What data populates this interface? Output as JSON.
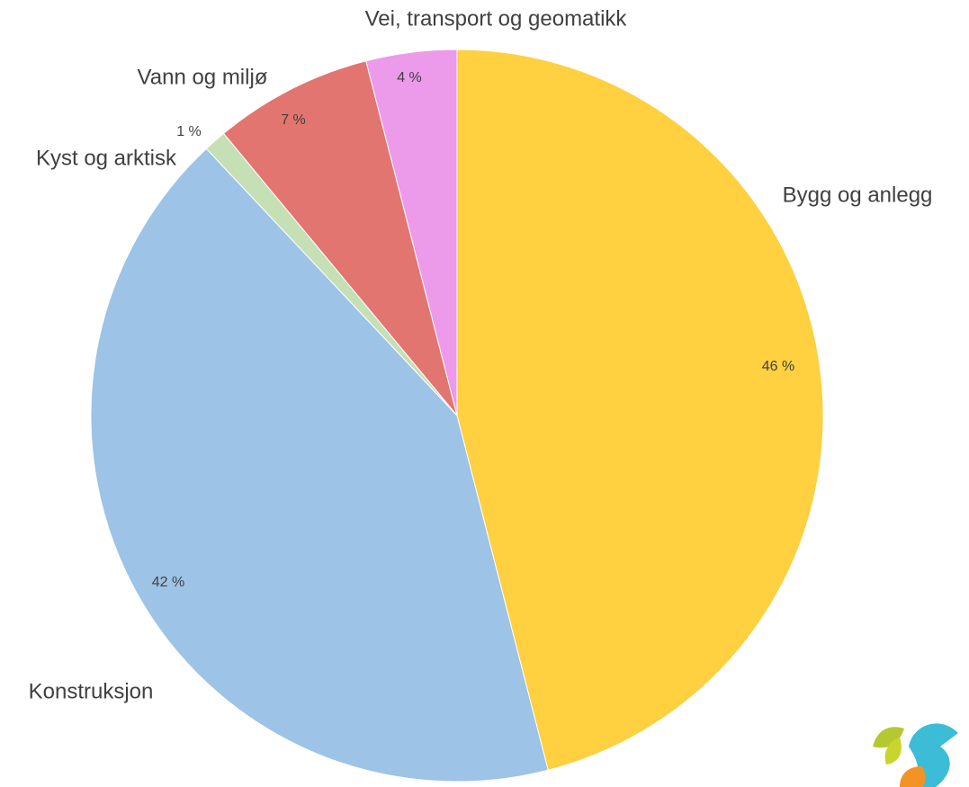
{
  "chart_data": {
    "type": "pie",
    "categories": [
      "Bygg og anlegg",
      "Konstruksjon",
      "Kyst og arktisk",
      "Vann og miljø",
      "Vei, transport og geomatikk"
    ],
    "values": [
      46,
      42,
      1,
      7,
      4
    ],
    "value_labels": [
      "46 %",
      "42 %",
      "1 %",
      "7 %",
      "4 %"
    ],
    "colors": [
      "#ffd03f",
      "#9dc3e6",
      "#c5e0b4",
      "#e27570",
      "#ec9aea"
    ]
  }
}
